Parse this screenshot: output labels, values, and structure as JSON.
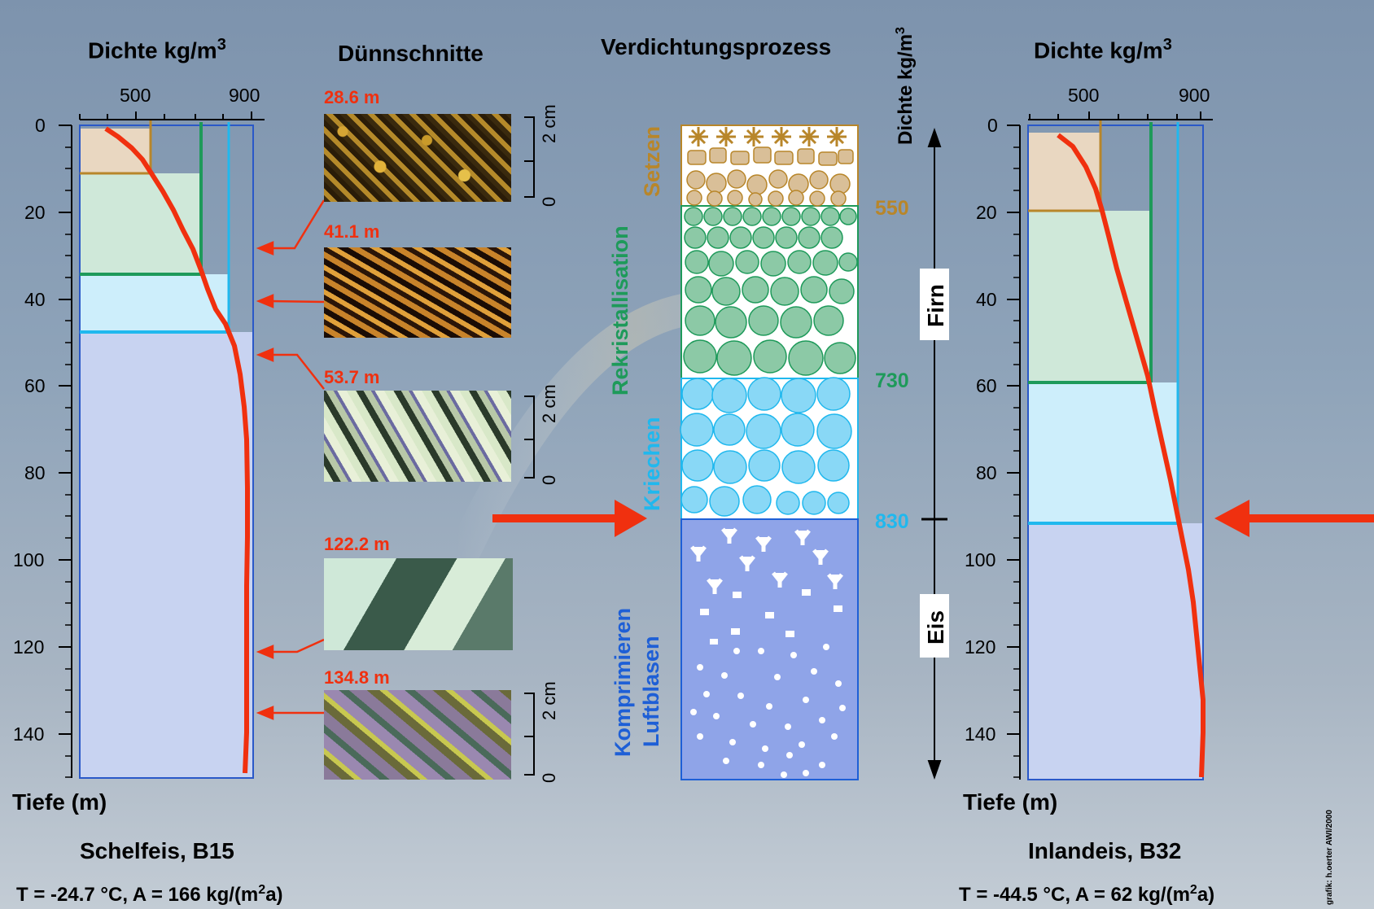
{
  "left_panel": {
    "axis_title": "Dichte kg/m",
    "axis_title_sup": "3",
    "density_ticks": [
      "500",
      "900"
    ],
    "depth_ticks": [
      "0",
      "20",
      "40",
      "60",
      "80",
      "100",
      "120",
      "140"
    ],
    "depth_label": "Tiefe (m)",
    "site": "Schelfeis, B15",
    "conditions_pre": "T = -24.7 °C, A = 166 kg/(m",
    "conditions_sup": "2",
    "conditions_post": "a)",
    "layer_boundaries_m": [
      11,
      34,
      48
    ],
    "density_lines": [
      550,
      730,
      830
    ]
  },
  "right_panel": {
    "axis_title": "Dichte kg/m",
    "axis_title_sup": "3",
    "density_ticks": [
      "500",
      "900"
    ],
    "depth_ticks": [
      "0",
      "20",
      "40",
      "60",
      "80",
      "100",
      "120",
      "140"
    ],
    "depth_label": "Tiefe (m)",
    "site": "Inlandeis, B32",
    "conditions_pre": "T = -44.5 °C, A = 62 kg/(m",
    "conditions_sup": "2",
    "conditions_post": "a)",
    "layer_boundaries_m": [
      19,
      59,
      91
    ],
    "density_lines": [
      550,
      730,
      830
    ]
  },
  "thin_sections": {
    "title": "Dünnschnitte",
    "depths": [
      "28.6 m",
      "41.1 m",
      "53.7 m",
      "122.2 m",
      "134.8 m"
    ],
    "scale": {
      "label": "2 cm",
      "zero": "0"
    }
  },
  "process": {
    "title": "Verdichtungsprozess",
    "axis_label": "Dichte kg/m",
    "axis_sup": "3",
    "stages": [
      "Setzen",
      "Rekristallisation",
      "Kriechen",
      "Komprimieren",
      "Luftblasen"
    ],
    "density_values": [
      "550",
      "730",
      "830"
    ],
    "zones": [
      "Firn",
      "Eis"
    ]
  },
  "credit": "grafik: h.oerter AWI/2000",
  "colors": {
    "setzen": "#b8862a",
    "rekristallisation": "#1e9a5a",
    "kriechen": "#20b8ee",
    "komprimieren": "#1e5fd6",
    "profile": "#f0300f",
    "firn_fill": "#e9d7c1",
    "rekris_fill": "#cfe8d9",
    "kriech_fill": "#cdeefb",
    "ice_fill": "#c8d3f1"
  }
}
